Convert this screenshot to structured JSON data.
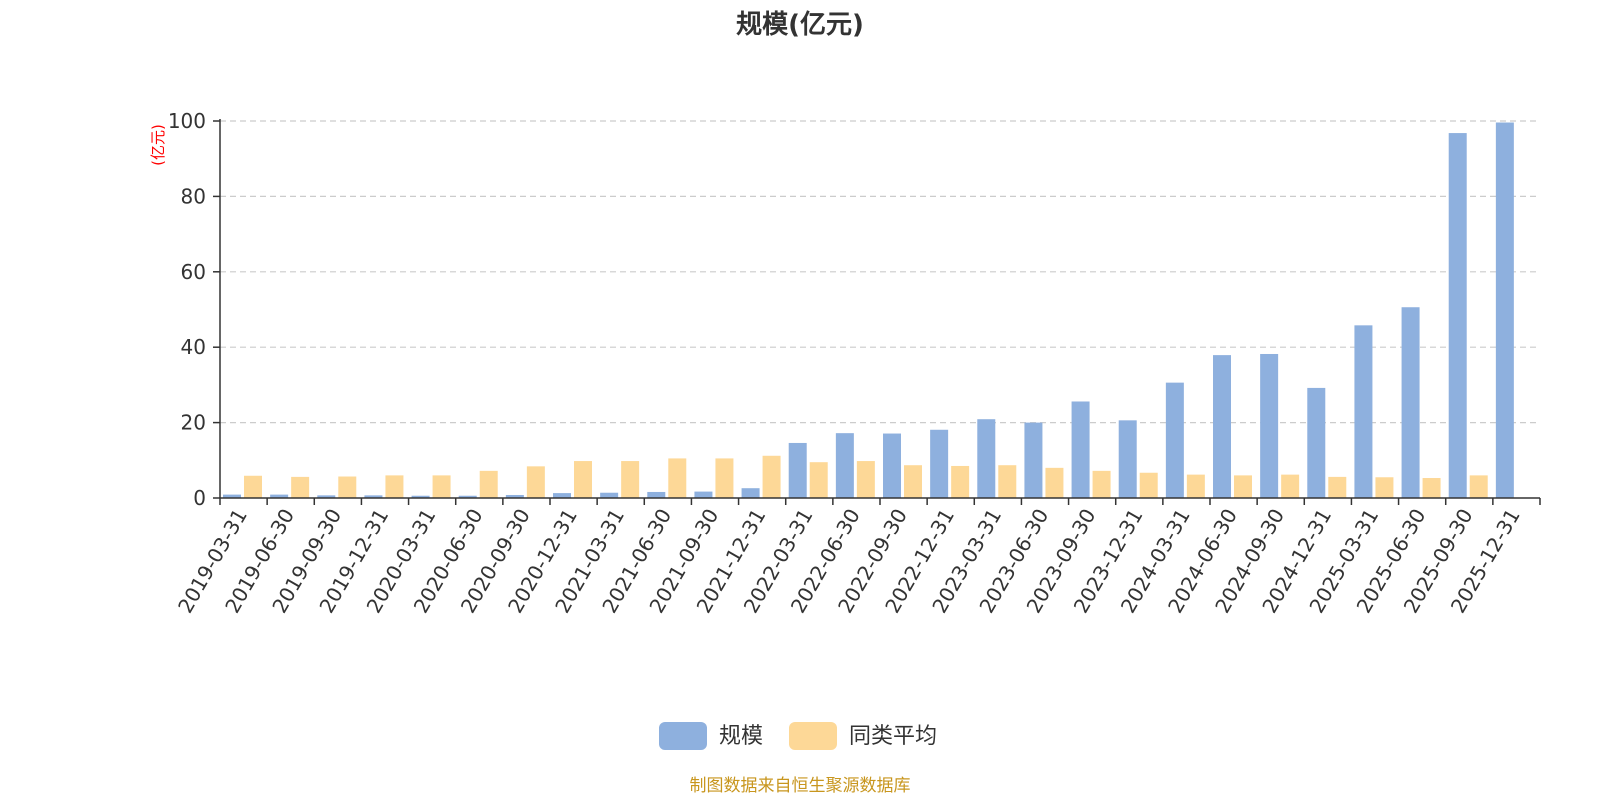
{
  "chart_data": {
    "type": "bar",
    "title": "规模(亿元)",
    "ylabel": "(亿元)",
    "xlabel": "",
    "ylim": [
      0,
      100
    ],
    "yticks": [
      0,
      20,
      40,
      60,
      80,
      100
    ],
    "grid": true,
    "legend_position": "bottom",
    "categories": [
      "2019-03-31",
      "2019-06-30",
      "2019-09-30",
      "2019-12-31",
      "2020-03-31",
      "2020-06-30",
      "2020-09-30",
      "2020-12-31",
      "2021-03-31",
      "2021-06-30",
      "2021-09-30",
      "2021-12-31",
      "2022-03-31",
      "2022-06-30",
      "2022-09-30",
      "2022-12-31",
      "2023-03-31",
      "2023-06-30",
      "2023-09-30",
      "2023-12-31",
      "2024-03-31",
      "2024-06-30",
      "2024-09-30",
      "2024-12-31",
      "2025-03-31",
      "2025-06-30",
      "2025-09-30",
      "2025-12-31"
    ],
    "series": [
      {
        "name": "规模",
        "color": "#8eb0de",
        "values": [
          0.9,
          0.9,
          0.7,
          0.7,
          0.6,
          0.6,
          0.8,
          1.3,
          1.4,
          1.6,
          1.7,
          2.6,
          14.6,
          17.2,
          17.1,
          18.1,
          20.9,
          20.0,
          25.6,
          20.6,
          30.6,
          37.9,
          38.2,
          29.2,
          45.8,
          50.6,
          96.8,
          99.6
        ]
      },
      {
        "name": "同类平均",
        "color": "#fdd897",
        "values": [
          5.9,
          5.6,
          5.7,
          6.0,
          6.0,
          7.2,
          8.4,
          9.8,
          9.8,
          10.5,
          10.5,
          11.2,
          9.5,
          9.8,
          8.7,
          8.5,
          8.7,
          8.0,
          7.2,
          6.7,
          6.2,
          6.0,
          6.2,
          5.6,
          5.5,
          5.3,
          6.0,
          null
        ]
      }
    ]
  },
  "footer": {
    "source_text": "制图数据来自恒生聚源数据库"
  }
}
